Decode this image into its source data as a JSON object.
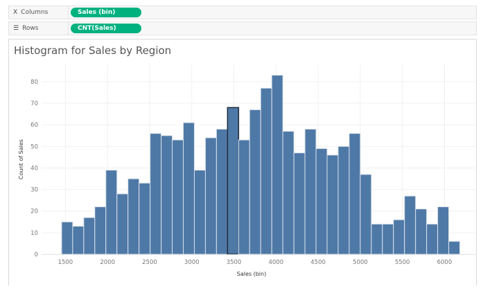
{
  "shelves": {
    "columns": {
      "label": "Columns",
      "icon": "columns-icon",
      "pill": "Sales (bin)"
    },
    "rows": {
      "label": "Rows",
      "icon": "rows-icon",
      "pill": "CNT(Sales)"
    }
  },
  "colors": {
    "bar": "#4e79a7",
    "bar_outline": "#d9e1ea",
    "highlight_outline": "#1f2b38",
    "pill": "#00b180"
  },
  "chart_data": {
    "type": "bar",
    "title": "Histogram for Sales by Region",
    "xlabel": "Sales (bin)",
    "ylabel": "Count of Sales",
    "bin_start": 1455,
    "bin_width": 131.3,
    "values": [
      15,
      13,
      17,
      22,
      39,
      28,
      35,
      33,
      56,
      55,
      53,
      61,
      39,
      54,
      58,
      68,
      53,
      67,
      77,
      83,
      57,
      47,
      58,
      49,
      46,
      50,
      56,
      37,
      14,
      14,
      16,
      27,
      21,
      14,
      22,
      6
    ],
    "highlighted_index": 15,
    "x_ticks": [
      "1500",
      "2000",
      "2500",
      "3000",
      "3500",
      "4000",
      "4500",
      "5000",
      "5500",
      "6000"
    ],
    "y_ticks": [
      "0",
      "10",
      "20",
      "30",
      "40",
      "50",
      "60",
      "70",
      "80"
    ],
    "xlim": [
      1217,
      6383
    ],
    "ylim": [
      0,
      88
    ],
    "grid": true
  }
}
